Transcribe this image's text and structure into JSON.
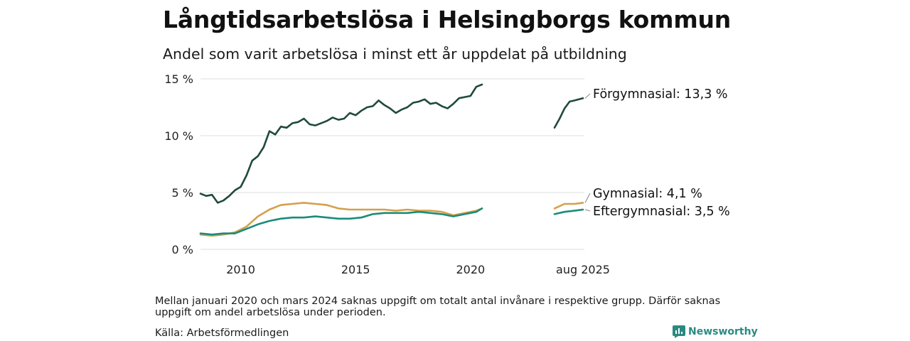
{
  "title": "Långtidsarbetslösa i Helsingborgs kommun",
  "subtitle": "Andel som varit arbetslösa i minst ett år uppdelat på utbildning",
  "note": "Mellan januari 2020 och mars 2024 saknas uppgift om totalt antal invånare i respektive grupp. Därför saknas uppgift om andel arbetslösa under perioden.",
  "source": "Källa: Arbetsförmedlingen",
  "brand": "Newsworthy",
  "colors": {
    "forgymnasial": "#1f4a3d",
    "gymnasial": "#d4a04c",
    "eftergymnasial": "#1a8c7a",
    "grid": "#dddddd",
    "brand": "#2a8a82"
  },
  "chart_data": {
    "type": "line",
    "title": "Långtidsarbetslösa i Helsingborgs kommun",
    "subtitle": "Andel som varit arbetslösa i minst ett år uppdelat på utbildning",
    "xlabel": "",
    "ylabel": "",
    "x_tick_labels": [
      "2010",
      "2015",
      "2020",
      "aug 2025"
    ],
    "y_ticks": [
      0,
      5,
      10,
      15
    ],
    "y_tick_labels": [
      "0 %",
      "5 %",
      "10 %",
      "15 %"
    ],
    "ylim": [
      0,
      15
    ],
    "grid": "horizontal",
    "legend": "inline-labels-right",
    "series": [
      {
        "name": "Förgymnasial",
        "end_label": "Förgymnasial: 13,3 %",
        "segments": [
          [
            [
              "2008-04",
              4.9
            ],
            [
              "2008-07",
              4.7
            ],
            [
              "2008-10",
              4.8
            ],
            [
              "2009-01",
              4.1
            ],
            [
              "2009-04",
              4.3
            ],
            [
              "2009-07",
              4.7
            ],
            [
              "2009-10",
              5.2
            ],
            [
              "2010-01",
              5.5
            ],
            [
              "2010-04",
              6.5
            ],
            [
              "2010-07",
              7.8
            ],
            [
              "2010-10",
              8.2
            ],
            [
              "2011-01",
              9.0
            ],
            [
              "2011-04",
              10.4
            ],
            [
              "2011-07",
              10.1
            ],
            [
              "2011-10",
              10.8
            ],
            [
              "2012-01",
              10.7
            ],
            [
              "2012-04",
              11.1
            ],
            [
              "2012-07",
              11.2
            ],
            [
              "2012-10",
              11.5
            ],
            [
              "2013-01",
              11.0
            ],
            [
              "2013-04",
              10.9
            ],
            [
              "2013-07",
              11.1
            ],
            [
              "2013-10",
              11.3
            ],
            [
              "2014-01",
              11.6
            ],
            [
              "2014-04",
              11.4
            ],
            [
              "2014-07",
              11.5
            ],
            [
              "2014-10",
              12.0
            ],
            [
              "2015-01",
              11.8
            ],
            [
              "2015-04",
              12.2
            ],
            [
              "2015-07",
              12.5
            ],
            [
              "2015-10",
              12.6
            ],
            [
              "2016-01",
              13.1
            ],
            [
              "2016-04",
              12.7
            ],
            [
              "2016-07",
              12.4
            ],
            [
              "2016-10",
              12.0
            ],
            [
              "2017-01",
              12.3
            ],
            [
              "2017-04",
              12.5
            ],
            [
              "2017-07",
              12.9
            ],
            [
              "2017-10",
              13.0
            ],
            [
              "2018-01",
              13.2
            ],
            [
              "2018-04",
              12.8
            ],
            [
              "2018-07",
              12.9
            ],
            [
              "2018-10",
              12.6
            ],
            [
              "2019-01",
              12.4
            ],
            [
              "2019-04",
              12.8
            ],
            [
              "2019-07",
              13.3
            ],
            [
              "2019-10",
              13.4
            ],
            [
              "2020-01",
              13.5
            ],
            [
              "2020-04",
              14.3
            ],
            [
              "2020-07",
              14.5
            ]
          ],
          [
            [
              "2024-03",
              10.7
            ],
            [
              "2024-06",
              11.5
            ],
            [
              "2024-09",
              12.4
            ],
            [
              "2024-12",
              13.0
            ],
            [
              "2025-03",
              13.1
            ],
            [
              "2025-08",
              13.3
            ]
          ]
        ]
      },
      {
        "name": "Gymnasial",
        "end_label": "Gymnasial:  4,1 %",
        "segments": [
          [
            [
              "2008-04",
              1.3
            ],
            [
              "2008-10",
              1.2
            ],
            [
              "2009-04",
              1.3
            ],
            [
              "2009-10",
              1.5
            ],
            [
              "2010-04",
              2.0
            ],
            [
              "2010-10",
              2.9
            ],
            [
              "2011-04",
              3.5
            ],
            [
              "2011-10",
              3.9
            ],
            [
              "2012-04",
              4.0
            ],
            [
              "2012-10",
              4.1
            ],
            [
              "2013-04",
              4.0
            ],
            [
              "2013-10",
              3.9
            ],
            [
              "2014-04",
              3.6
            ],
            [
              "2014-10",
              3.5
            ],
            [
              "2015-04",
              3.5
            ],
            [
              "2015-10",
              3.5
            ],
            [
              "2016-04",
              3.5
            ],
            [
              "2016-10",
              3.4
            ],
            [
              "2017-04",
              3.5
            ],
            [
              "2017-10",
              3.4
            ],
            [
              "2018-04",
              3.4
            ],
            [
              "2018-10",
              3.3
            ],
            [
              "2019-04",
              3.0
            ],
            [
              "2019-10",
              3.2
            ],
            [
              "2020-04",
              3.4
            ],
            [
              "2020-07",
              3.6
            ]
          ],
          [
            [
              "2024-03",
              3.6
            ],
            [
              "2024-09",
              4.0
            ],
            [
              "2025-03",
              4.0
            ],
            [
              "2025-08",
              4.1
            ]
          ]
        ]
      },
      {
        "name": "Eftergymnasial",
        "end_label": "Eftergymnasial:  3,5 %",
        "segments": [
          [
            [
              "2008-04",
              1.4
            ],
            [
              "2008-10",
              1.3
            ],
            [
              "2009-04",
              1.4
            ],
            [
              "2009-10",
              1.4
            ],
            [
              "2010-04",
              1.8
            ],
            [
              "2010-10",
              2.2
            ],
            [
              "2011-04",
              2.5
            ],
            [
              "2011-10",
              2.7
            ],
            [
              "2012-04",
              2.8
            ],
            [
              "2012-10",
              2.8
            ],
            [
              "2013-04",
              2.9
            ],
            [
              "2013-10",
              2.8
            ],
            [
              "2014-04",
              2.7
            ],
            [
              "2014-10",
              2.7
            ],
            [
              "2015-04",
              2.8
            ],
            [
              "2015-10",
              3.1
            ],
            [
              "2016-04",
              3.2
            ],
            [
              "2016-10",
              3.2
            ],
            [
              "2017-04",
              3.2
            ],
            [
              "2017-10",
              3.3
            ],
            [
              "2018-04",
              3.2
            ],
            [
              "2018-10",
              3.1
            ],
            [
              "2019-04",
              2.9
            ],
            [
              "2019-10",
              3.1
            ],
            [
              "2020-04",
              3.3
            ],
            [
              "2020-07",
              3.6
            ]
          ],
          [
            [
              "2024-03",
              3.1
            ],
            [
              "2024-09",
              3.3
            ],
            [
              "2025-03",
              3.4
            ],
            [
              "2025-08",
              3.5
            ]
          ]
        ]
      }
    ]
  }
}
